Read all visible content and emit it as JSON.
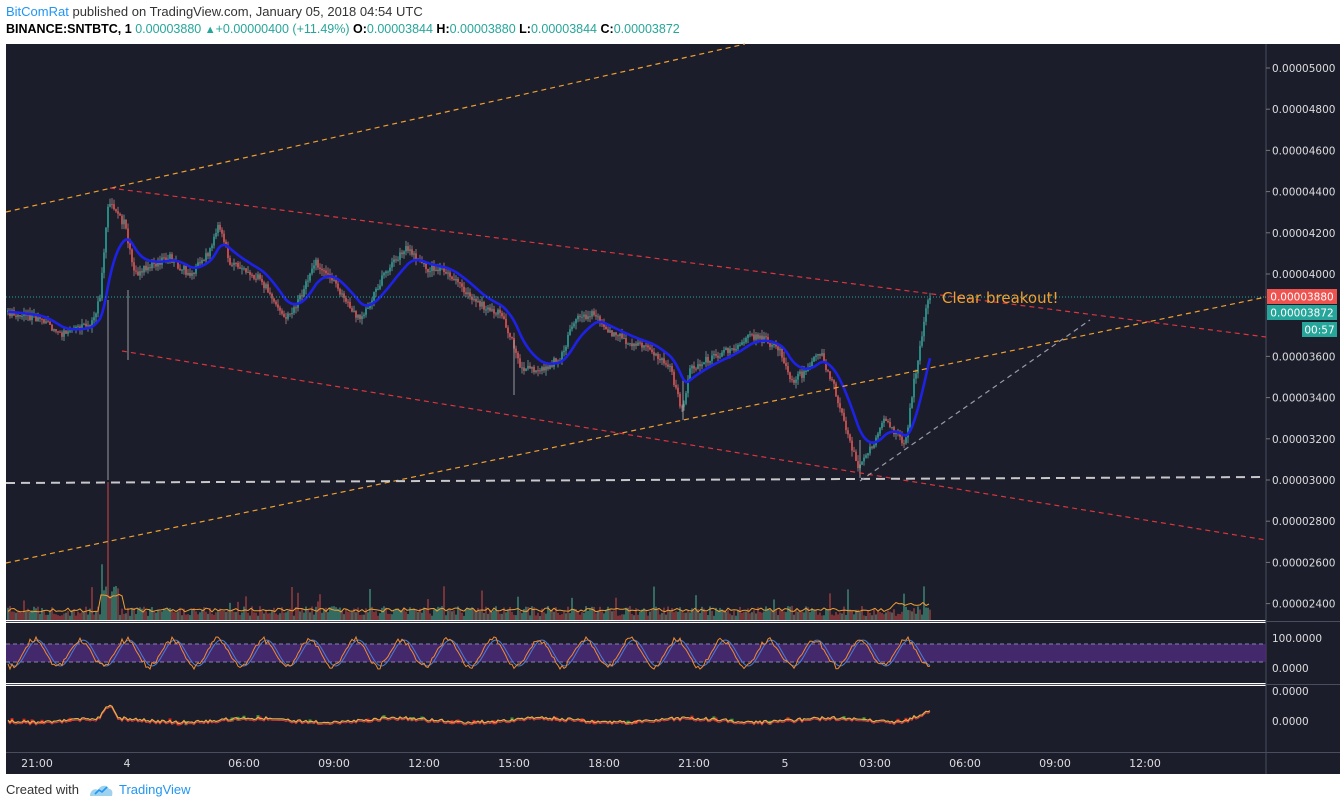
{
  "header": {
    "author": "BitComRat",
    "published_text": " published on TradingView.com, January 05, 2018 04:54 UTC",
    "symbol": "BINANCE:SNTBTC, 1",
    "last_price": "0.00003880",
    "change": "+0.00000400 (+11.49%)",
    "open_label": "O:",
    "open": "0.00003844",
    "high_label": "H:",
    "high": "0.00003880",
    "low_label": "L:",
    "low": "0.00003844",
    "close_label": "C:",
    "close": "0.00003872"
  },
  "price_scale": {
    "ticks": [
      "0.00005000",
      "0.00004800",
      "0.00004600",
      "0.00004400",
      "0.00004200",
      "0.00004000",
      "0.00003600",
      "0.00003400",
      "0.00003200",
      "0.00003000",
      "0.00002800",
      "0.00002600",
      "0.00002400"
    ],
    "tick_values": [
      5e-05,
      4.8e-05,
      4.6e-05,
      4.4e-05,
      4.2e-05,
      4e-05,
      3.6e-05,
      3.4e-05,
      3.2e-05,
      3e-05,
      2.8e-05,
      2.6e-05,
      2.4e-05
    ],
    "price_tag_red": "0.00003880",
    "price_tag_green": "0.00003872",
    "countdown": "00:57"
  },
  "oscillator_scale": {
    "top": "100.0000",
    "bottom": "0.0000"
  },
  "macd_scale": {
    "top": "0.0000",
    "mid": "0.0000"
  },
  "time_axis": {
    "labels": [
      "21:00",
      "4",
      "06:00",
      "09:00",
      "12:00",
      "15:00",
      "18:00",
      "21:00",
      "5",
      "03:00",
      "06:00",
      "09:00",
      "12:00"
    ]
  },
  "annotations": {
    "breakout_text": "Clear breakout!"
  },
  "footer": {
    "created_with": "Created with",
    "brand": "TradingView"
  },
  "colors": {
    "background": "#1b1d2b",
    "up": "#26a69a",
    "down": "#ef5350",
    "ema": "#1e22e6",
    "trend_orange": "#f0a030",
    "trend_red": "#d9363e",
    "accent": "#2196f3"
  }
}
